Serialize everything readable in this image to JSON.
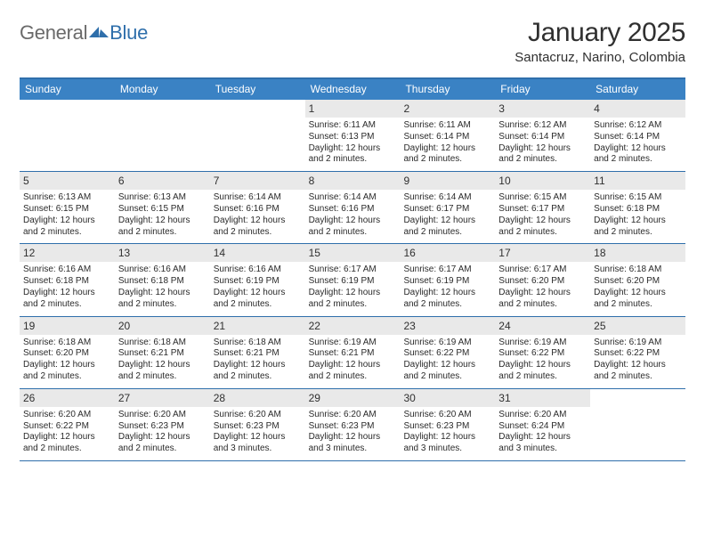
{
  "logo": {
    "text_general": "General",
    "text_blue": "Blue"
  },
  "title": "January 2025",
  "location": "Santacruz, Narino, Colombia",
  "colors": {
    "header_blue": "#3a82c4",
    "rule_blue": "#2f6fab",
    "daynum_bg": "#e9e9e9",
    "text": "#303030",
    "page_bg": "#ffffff"
  },
  "days_of_week": [
    "Sunday",
    "Monday",
    "Tuesday",
    "Wednesday",
    "Thursday",
    "Friday",
    "Saturday"
  ],
  "weeks": [
    [
      {
        "n": null
      },
      {
        "n": null
      },
      {
        "n": null
      },
      {
        "n": "1",
        "sr": "6:11 AM",
        "ss": "6:13 PM",
        "dl": "12 hours and 2 minutes."
      },
      {
        "n": "2",
        "sr": "6:11 AM",
        "ss": "6:14 PM",
        "dl": "12 hours and 2 minutes."
      },
      {
        "n": "3",
        "sr": "6:12 AM",
        "ss": "6:14 PM",
        "dl": "12 hours and 2 minutes."
      },
      {
        "n": "4",
        "sr": "6:12 AM",
        "ss": "6:14 PM",
        "dl": "12 hours and 2 minutes."
      }
    ],
    [
      {
        "n": "5",
        "sr": "6:13 AM",
        "ss": "6:15 PM",
        "dl": "12 hours and 2 minutes."
      },
      {
        "n": "6",
        "sr": "6:13 AM",
        "ss": "6:15 PM",
        "dl": "12 hours and 2 minutes."
      },
      {
        "n": "7",
        "sr": "6:14 AM",
        "ss": "6:16 PM",
        "dl": "12 hours and 2 minutes."
      },
      {
        "n": "8",
        "sr": "6:14 AM",
        "ss": "6:16 PM",
        "dl": "12 hours and 2 minutes."
      },
      {
        "n": "9",
        "sr": "6:14 AM",
        "ss": "6:17 PM",
        "dl": "12 hours and 2 minutes."
      },
      {
        "n": "10",
        "sr": "6:15 AM",
        "ss": "6:17 PM",
        "dl": "12 hours and 2 minutes."
      },
      {
        "n": "11",
        "sr": "6:15 AM",
        "ss": "6:18 PM",
        "dl": "12 hours and 2 minutes."
      }
    ],
    [
      {
        "n": "12",
        "sr": "6:16 AM",
        "ss": "6:18 PM",
        "dl": "12 hours and 2 minutes."
      },
      {
        "n": "13",
        "sr": "6:16 AM",
        "ss": "6:18 PM",
        "dl": "12 hours and 2 minutes."
      },
      {
        "n": "14",
        "sr": "6:16 AM",
        "ss": "6:19 PM",
        "dl": "12 hours and 2 minutes."
      },
      {
        "n": "15",
        "sr": "6:17 AM",
        "ss": "6:19 PM",
        "dl": "12 hours and 2 minutes."
      },
      {
        "n": "16",
        "sr": "6:17 AM",
        "ss": "6:19 PM",
        "dl": "12 hours and 2 minutes."
      },
      {
        "n": "17",
        "sr": "6:17 AM",
        "ss": "6:20 PM",
        "dl": "12 hours and 2 minutes."
      },
      {
        "n": "18",
        "sr": "6:18 AM",
        "ss": "6:20 PM",
        "dl": "12 hours and 2 minutes."
      }
    ],
    [
      {
        "n": "19",
        "sr": "6:18 AM",
        "ss": "6:20 PM",
        "dl": "12 hours and 2 minutes."
      },
      {
        "n": "20",
        "sr": "6:18 AM",
        "ss": "6:21 PM",
        "dl": "12 hours and 2 minutes."
      },
      {
        "n": "21",
        "sr": "6:18 AM",
        "ss": "6:21 PM",
        "dl": "12 hours and 2 minutes."
      },
      {
        "n": "22",
        "sr": "6:19 AM",
        "ss": "6:21 PM",
        "dl": "12 hours and 2 minutes."
      },
      {
        "n": "23",
        "sr": "6:19 AM",
        "ss": "6:22 PM",
        "dl": "12 hours and 2 minutes."
      },
      {
        "n": "24",
        "sr": "6:19 AM",
        "ss": "6:22 PM",
        "dl": "12 hours and 2 minutes."
      },
      {
        "n": "25",
        "sr": "6:19 AM",
        "ss": "6:22 PM",
        "dl": "12 hours and 2 minutes."
      }
    ],
    [
      {
        "n": "26",
        "sr": "6:20 AM",
        "ss": "6:22 PM",
        "dl": "12 hours and 2 minutes."
      },
      {
        "n": "27",
        "sr": "6:20 AM",
        "ss": "6:23 PM",
        "dl": "12 hours and 2 minutes."
      },
      {
        "n": "28",
        "sr": "6:20 AM",
        "ss": "6:23 PM",
        "dl": "12 hours and 3 minutes."
      },
      {
        "n": "29",
        "sr": "6:20 AM",
        "ss": "6:23 PM",
        "dl": "12 hours and 3 minutes."
      },
      {
        "n": "30",
        "sr": "6:20 AM",
        "ss": "6:23 PM",
        "dl": "12 hours and 3 minutes."
      },
      {
        "n": "31",
        "sr": "6:20 AM",
        "ss": "6:24 PM",
        "dl": "12 hours and 3 minutes."
      },
      {
        "n": null
      }
    ]
  ],
  "labels": {
    "sunrise": "Sunrise:",
    "sunset": "Sunset:",
    "daylight": "Daylight:"
  }
}
